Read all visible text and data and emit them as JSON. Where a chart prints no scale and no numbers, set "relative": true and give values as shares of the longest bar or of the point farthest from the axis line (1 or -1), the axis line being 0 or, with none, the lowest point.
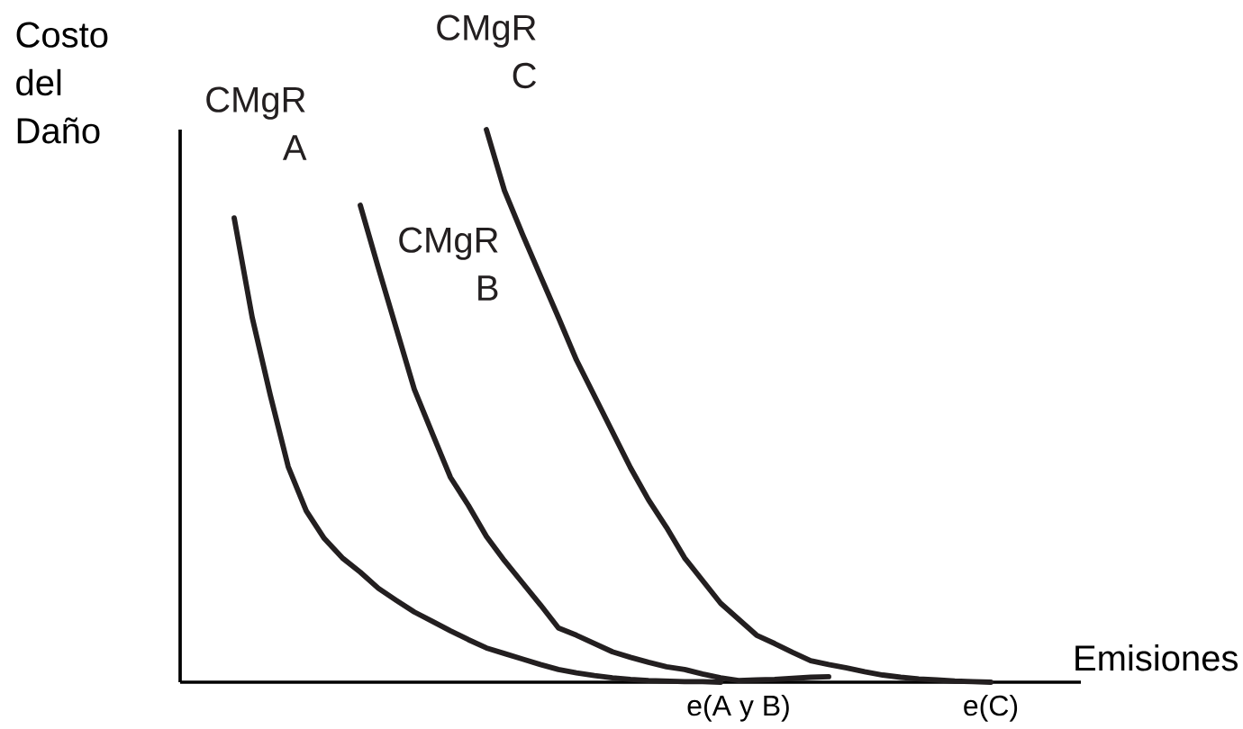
{
  "chart_data": {
    "type": "line",
    "relative": true,
    "xlabel": "Emisiones",
    "ylabel": "Costo del Daño",
    "categories": [
      null,
      null,
      null,
      null,
      null,
      null,
      null,
      null,
      null,
      null,
      null,
      null,
      null,
      null,
      null,
      null,
      null,
      null,
      null,
      null,
      null,
      null,
      null,
      null,
      null,
      null,
      null,
      null,
      null,
      null,
      null,
      "e(A y B)",
      null,
      null,
      null,
      null,
      null,
      null,
      null,
      null,
      null,
      null,
      null,
      null,
      null,
      "e(C)",
      null,
      null,
      null,
      null,
      null
    ],
    "tick_labels": "x",
    "line_style": "solid",
    "series": [
      {
        "name": "CMgR A",
        "color": "#231f20",
        "values": [
          null,
          null,
          null,
          0.84,
          0.66,
          0.52,
          0.39,
          0.31,
          0.26,
          0.225,
          0.199,
          0.17,
          0.148,
          0.127,
          0.11,
          0.093,
          0.077,
          0.062,
          0.052,
          0.042,
          0.032,
          0.023,
          0.017,
          0.012,
          0.008,
          0.005,
          0.003,
          0.002,
          0.001,
          0.001,
          0,
          null,
          null,
          null,
          null,
          null,
          null,
          null,
          null,
          null,
          null,
          null,
          null,
          null,
          null,
          null,
          null,
          null,
          null,
          null,
          null
        ]
      },
      {
        "name": "CMgR B",
        "color": "#231f20",
        "values": [
          null,
          null,
          null,
          null,
          null,
          null,
          null,
          null,
          null,
          null,
          0.863,
          0.75,
          0.64,
          0.53,
          0.45,
          0.371,
          0.32,
          0.264,
          0.22,
          0.18,
          0.14,
          0.098,
          0.085,
          0.07,
          0.055,
          0.045,
          0.036,
          0.028,
          0.023,
          0.015,
          0.008,
          0.003,
          0.004,
          0.005,
          0.007,
          0.009,
          0.01,
          null,
          null,
          null,
          null,
          null,
          null,
          null,
          null,
          null,
          null,
          null,
          null,
          null,
          null
        ]
      },
      {
        "name": "CMgR C",
        "color": "#231f20",
        "values": [
          null,
          null,
          null,
          null,
          null,
          null,
          null,
          null,
          null,
          null,
          null,
          null,
          null,
          null,
          null,
          null,
          null,
          1,
          0.89,
          0.811,
          0.735,
          0.66,
          0.583,
          0.518,
          0.453,
          0.388,
          0.33,
          0.28,
          0.225,
          0.184,
          0.143,
          0.114,
          0.085,
          0.07,
          0.054,
          0.039,
          0.032,
          0.026,
          0.019,
          0.013,
          0.009,
          0.006,
          0.004,
          0.002,
          0.001,
          0,
          null,
          null,
          null,
          null,
          null
        ]
      }
    ]
  }
}
